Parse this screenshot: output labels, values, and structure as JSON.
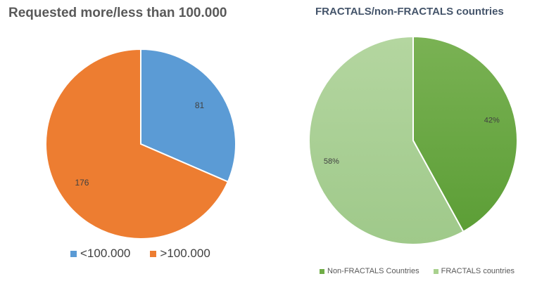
{
  "chart_data": [
    {
      "type": "pie",
      "title": "Requested more/less than 100.000",
      "labels": [
        "<100.000",
        ">100.000"
      ],
      "values": [
        81,
        176
      ],
      "data_labels": [
        "81",
        "176"
      ],
      "colors": [
        "#5B9BD5",
        "#ED7D31"
      ],
      "start_angle_deg": 0,
      "legend_position": "bottom"
    },
    {
      "type": "pie",
      "title": "FRACTALS/non-FRACTALS countries",
      "labels": [
        "Non-FRACTALS Countries",
        "FRACTALS countries"
      ],
      "values": [
        42,
        58
      ],
      "data_labels": [
        "42%",
        "58%"
      ],
      "colors": [
        "#70AD47",
        "#A9D18E"
      ],
      "start_angle_deg": 0,
      "legend_position": "bottom"
    }
  ]
}
